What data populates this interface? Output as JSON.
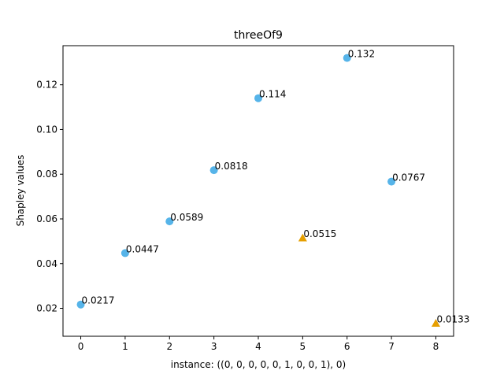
{
  "chart_data": {
    "type": "scatter",
    "title": "threeOf9",
    "xlabel": "instance: ((0, 0, 0, 0, 0, 1, 0, 0, 1), 0)",
    "ylabel": "Shapley values",
    "xlim": [
      -0.4,
      8.4
    ],
    "ylim": [
      0.0075,
      0.1375
    ],
    "xticks": [
      0,
      1,
      2,
      3,
      4,
      5,
      6,
      7,
      8
    ],
    "yticks": [
      0.02,
      0.04,
      0.06,
      0.08,
      0.1,
      0.12
    ],
    "ytick_labels": [
      "0.02",
      "0.04",
      "0.06",
      "0.08",
      "0.10",
      "0.12"
    ],
    "grid": false,
    "series": [
      {
        "marker": "circle",
        "color": "#56b4e9",
        "points": [
          {
            "x": 0,
            "y": 0.0217,
            "label": "0.0217"
          },
          {
            "x": 1,
            "y": 0.0447,
            "label": "0.0447"
          },
          {
            "x": 2,
            "y": 0.0589,
            "label": "0.0589"
          },
          {
            "x": 3,
            "y": 0.0818,
            "label": "0.0818"
          },
          {
            "x": 4,
            "y": 0.114,
            "label": "0.114"
          },
          {
            "x": 6,
            "y": 0.132,
            "label": "0.132"
          },
          {
            "x": 7,
            "y": 0.0767,
            "label": "0.0767"
          }
        ]
      },
      {
        "marker": "triangle",
        "color": "#e69f00",
        "points": [
          {
            "x": 5,
            "y": 0.0515,
            "label": "0.0515"
          },
          {
            "x": 8,
            "y": 0.0133,
            "label": "0.0133"
          }
        ]
      }
    ]
  }
}
